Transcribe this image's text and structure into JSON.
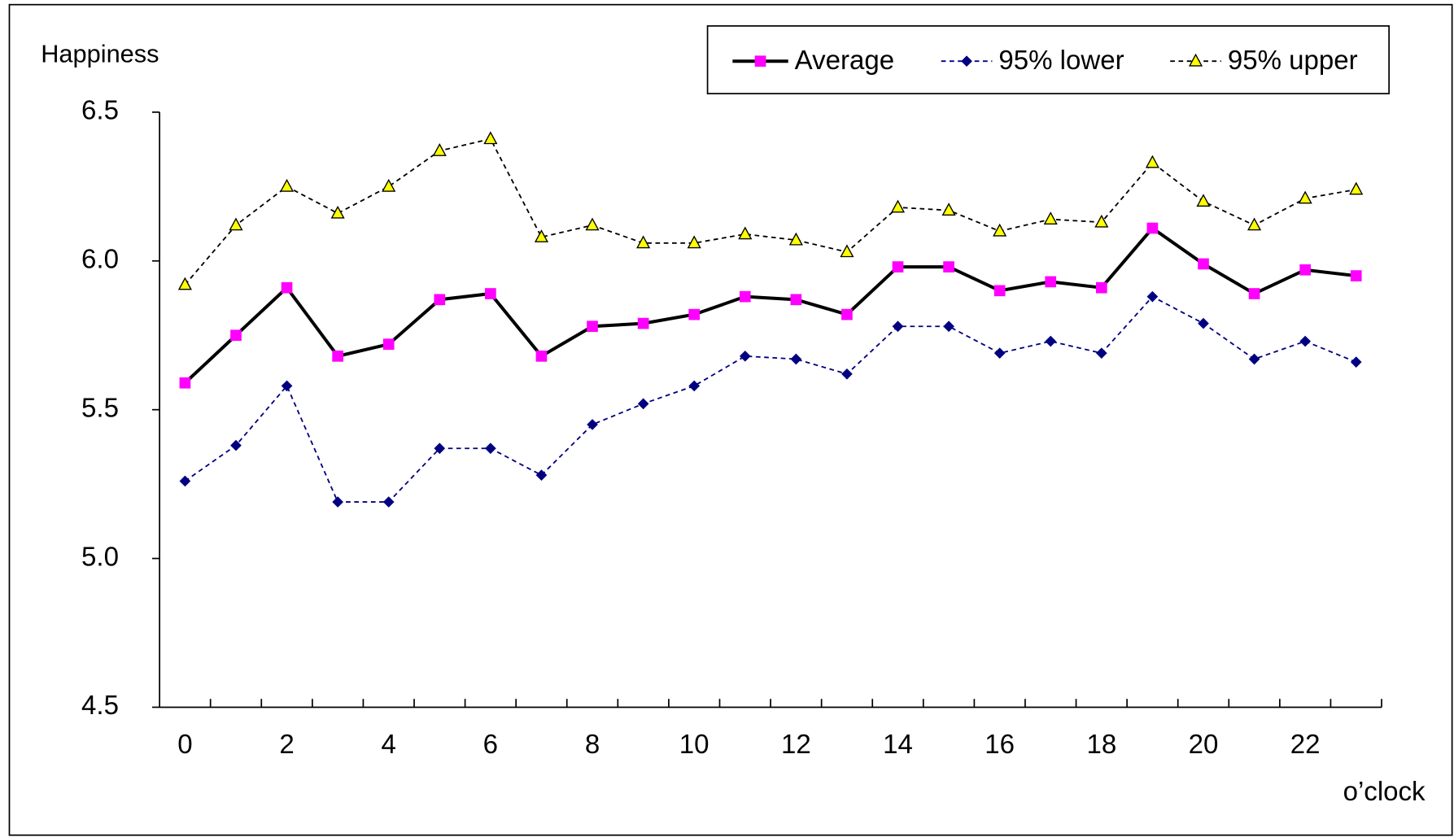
{
  "chart_data": {
    "type": "line",
    "y_label": "Happiness",
    "x_label": "o’clock",
    "categories": [
      0,
      null,
      2,
      null,
      4,
      null,
      6,
      null,
      8,
      null,
      10,
      null,
      12,
      null,
      14,
      null,
      16,
      null,
      18,
      null,
      20,
      null,
      22,
      null
    ],
    "ylim": [
      4.5,
      6.5
    ],
    "yticks": [
      4.5,
      {
        "value": 5,
        "label": "5.0"
      },
      5.5,
      {
        "value": 6,
        "label": "6.0"
      },
      6.5
    ],
    "grid": false,
    "legend": "top-right",
    "series": [
      {
        "name": "Average",
        "color": "#000000",
        "marker": "square",
        "marker_color": "#ff00ff",
        "line_style": "solid",
        "values": [
          5.59,
          5.75,
          5.91,
          5.68,
          5.72,
          5.87,
          5.89,
          5.68,
          5.78,
          5.79,
          5.82,
          5.88,
          5.87,
          5.82,
          5.98,
          5.98,
          5.9,
          5.93,
          5.91,
          6.11,
          5.99,
          5.89,
          5.97,
          5.95
        ]
      },
      {
        "name": "95% lower",
        "color": "#000080",
        "marker": "diamond",
        "marker_color": "#000080",
        "line_style": "dashed",
        "values": [
          5.26,
          5.38,
          5.58,
          5.19,
          5.19,
          5.37,
          5.37,
          5.28,
          5.45,
          5.52,
          5.58,
          5.68,
          5.67,
          5.62,
          5.78,
          5.78,
          5.69,
          5.73,
          5.69,
          5.88,
          5.79,
          5.67,
          5.73,
          5.66
        ]
      },
      {
        "name": "95% upper",
        "color": "#000000",
        "marker": "triangle",
        "marker_color": "#ffff00",
        "line_style": "dashed",
        "values": [
          5.92,
          6.12,
          6.25,
          6.16,
          6.25,
          6.37,
          6.41,
          6.08,
          6.12,
          6.06,
          6.06,
          6.09,
          6.07,
          6.03,
          6.18,
          6.17,
          6.1,
          6.14,
          6.13,
          6.33,
          6.2,
          6.12,
          6.21,
          6.24
        ]
      }
    ]
  }
}
